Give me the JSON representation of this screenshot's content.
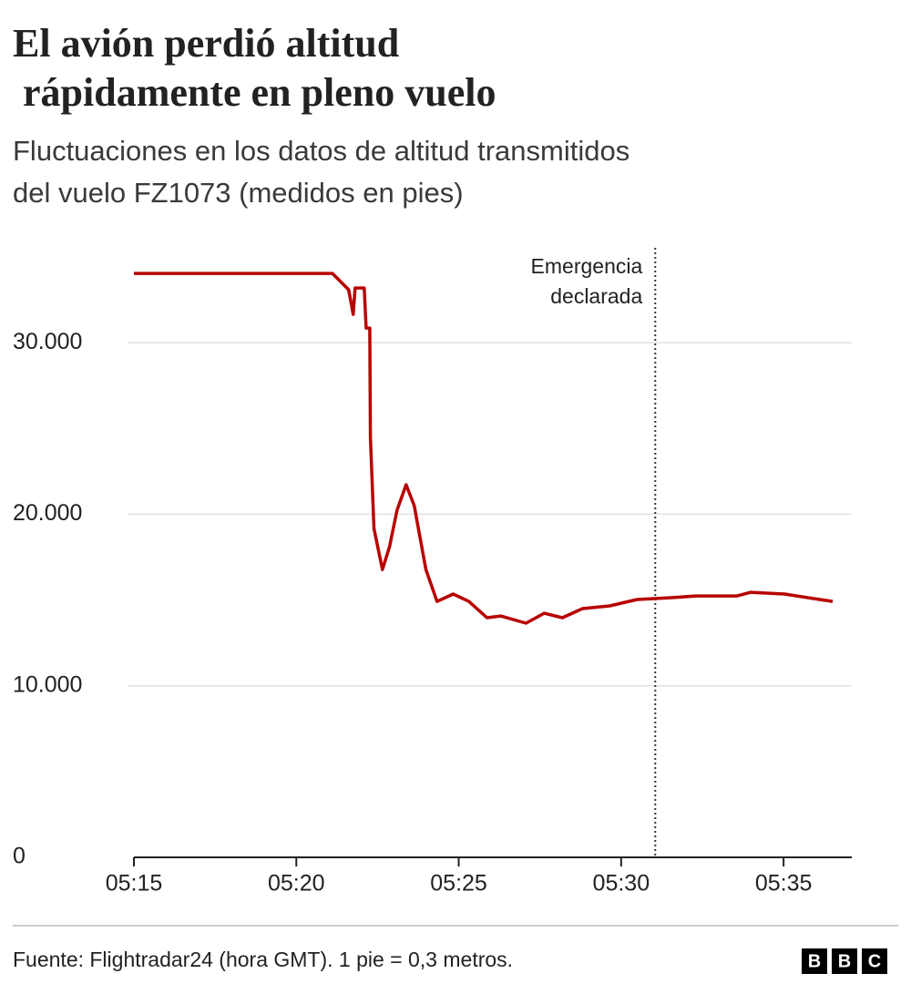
{
  "chart_data": {
    "type": "line",
    "title": "El avión perdió altitud rápidamente en pleno vuelo",
    "subtitle": [
      "Fluctuaciones en los datos de altitud transmitidos",
      "del vuelo FZ1073 (medidos en pies)"
    ],
    "x": [
      315,
      321.11,
      321.61,
      321.75,
      321.81,
      322.09,
      322.15,
      322.26,
      322.28,
      322.39,
      322.65,
      322.87,
      323.1,
      323.38,
      323.63,
      323.99,
      324.33,
      324.83,
      325.31,
      325.87,
      326.29,
      327.07,
      327.63,
      328.19,
      328.81,
      329.65,
      330.49,
      331.61,
      332.31,
      333.57,
      333.99,
      335.03,
      335.95,
      336.51
    ],
    "series": [
      {
        "color": "#b80000",
        "values": [
          34040,
          34040,
          33090,
          31650,
          33190,
          33190,
          30850,
          30850,
          24480,
          19170,
          16780,
          18110,
          20230,
          21720,
          20500,
          16780,
          14920,
          15350,
          14920,
          13970,
          14070,
          13650,
          14230,
          13970,
          14500,
          14660,
          15030,
          15140,
          15240,
          15240,
          15450,
          15350,
          15080,
          14920
        ]
      }
    ],
    "xlim": [
      315,
      337.1
    ],
    "xticks": [
      {
        "value": 315,
        "label": "05:15"
      },
      {
        "value": 320,
        "label": "05:20"
      },
      {
        "value": 325,
        "label": "05:25"
      },
      {
        "value": 330,
        "label": "05:30"
      },
      {
        "value": 335,
        "label": "05:35"
      }
    ],
    "ylim": [
      0,
      35000
    ],
    "yticks": [
      0,
      {
        "value": 10000,
        "label": "10.000"
      },
      {
        "value": 20000,
        "label": "20.000"
      },
      {
        "value": 30000,
        "label": "30.000"
      }
    ],
    "grid": true,
    "annotation": {
      "x": 331.05,
      "text": [
        "Emergencia",
        "declarada"
      ]
    },
    "source": "Fuente: Flightradar24 (hora GMT). 1 pie = 0,3 metros.",
    "logo": [
      "B",
      "B",
      "C"
    ]
  }
}
